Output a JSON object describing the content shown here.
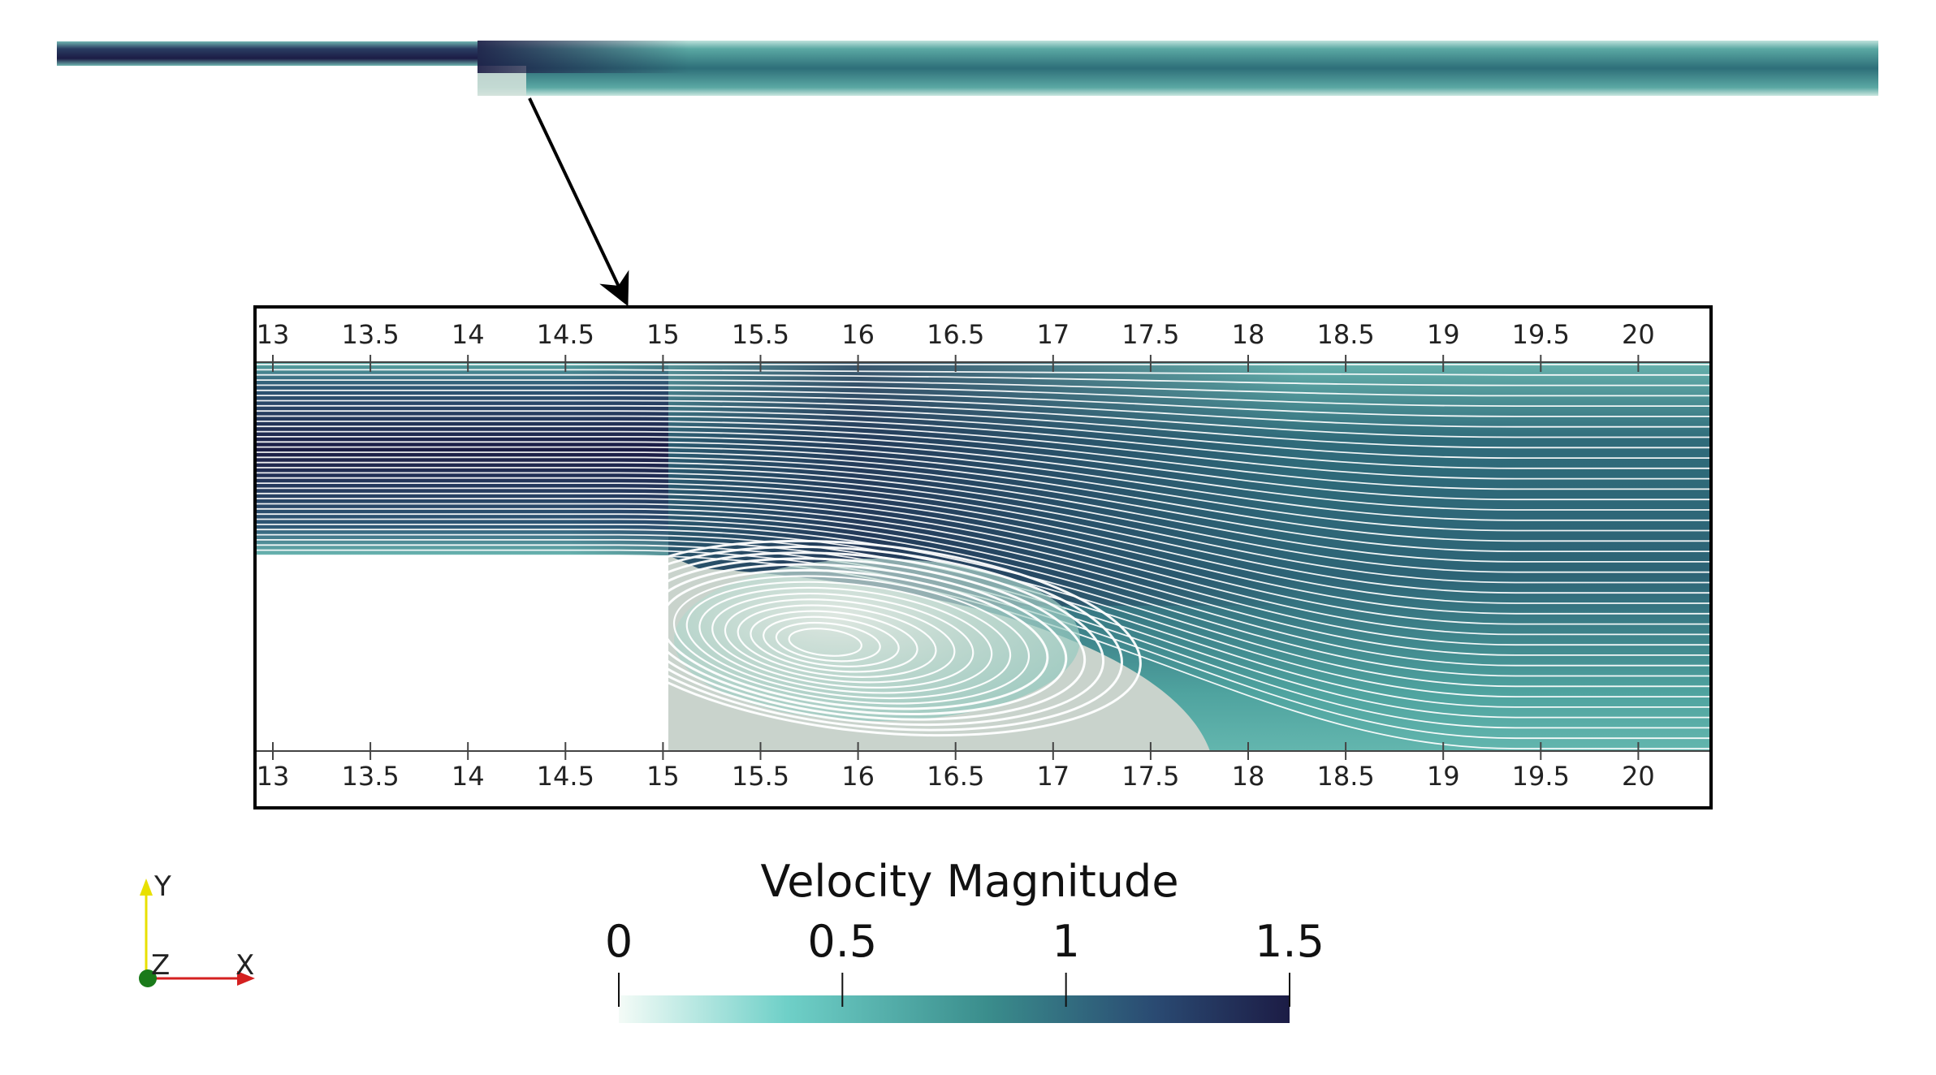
{
  "colorbar": {
    "title": "Velocity Magnitude",
    "labels": [
      "0",
      "0.5",
      "1",
      "1.5"
    ],
    "values": [
      0,
      0.5,
      1,
      1.5
    ],
    "range": [
      0,
      1.5
    ],
    "colors": [
      "#f4fbf7",
      "#6fd0c8",
      "#3a8d8c",
      "#2a4a72",
      "#1c1c45"
    ]
  },
  "zoom": {
    "x_range": [
      13,
      20.3
    ],
    "ticks": [
      "13",
      "13.5",
      "14",
      "14.5",
      "15",
      "15.5",
      "16",
      "16.5",
      "17",
      "17.5",
      "18",
      "18.5",
      "19",
      "19.5",
      "20"
    ],
    "step_x": 15,
    "recirculation_reattach_x": 17.8
  },
  "orientation": {
    "y_label": "Y",
    "z_label": "Z",
    "x_label": "X",
    "colors": {
      "y": "#e8e000",
      "z": "#1a7a1a",
      "x": "#d42020"
    }
  }
}
